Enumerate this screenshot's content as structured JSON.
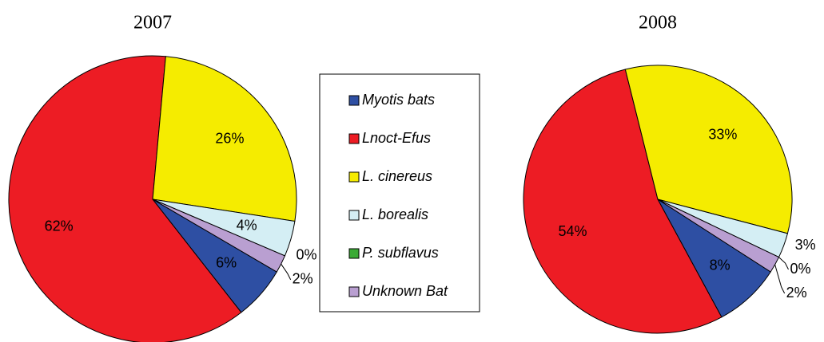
{
  "chart_data": [
    {
      "type": "pie",
      "title": "2007",
      "categories": [
        "Myotis bats",
        "Lnoct-Efus",
        "L. cinereus",
        "L. borealis",
        "P. subflavus",
        "Unknown Bat"
      ],
      "values": [
        6,
        62,
        26,
        4,
        0,
        2
      ],
      "value_labels": [
        "6%",
        "62%",
        "26%",
        "4%",
        "0%",
        "2%"
      ],
      "colors": [
        "#2e4fa3",
        "#ed1c24",
        "#f5ec00",
        "#d4eef4",
        "#3aaa35",
        "#b99fd1"
      ]
    },
    {
      "type": "pie",
      "title": "2008",
      "categories": [
        "Myotis bats",
        "Lnoct-Efus",
        "L. cinereus",
        "L. borealis",
        "P. subflavus",
        "Unknown Bat"
      ],
      "values": [
        8,
        54,
        33,
        3,
        0,
        2
      ],
      "value_labels": [
        "8%",
        "54%",
        "33%",
        "3%",
        "0%",
        "2%"
      ],
      "colors": [
        "#2e4fa3",
        "#ed1c24",
        "#f5ec00",
        "#d4eef4",
        "#3aaa35",
        "#b99fd1"
      ]
    }
  ]
}
